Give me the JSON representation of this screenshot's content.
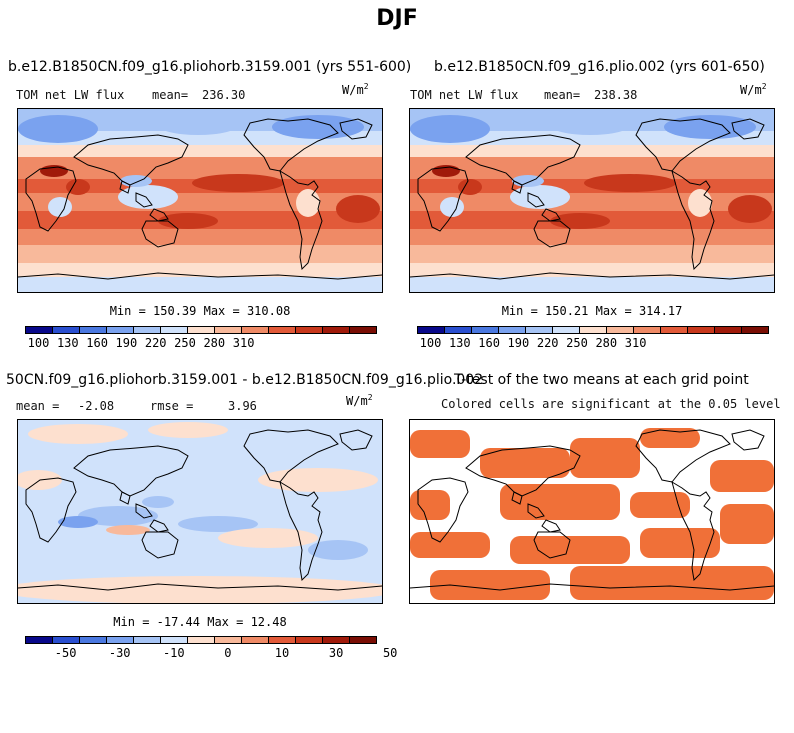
{
  "main_title": "DJF",
  "colors": {
    "scale_abs": [
      "#08088a",
      "#2a4fd0",
      "#4a78e0",
      "#7aa2ef",
      "#a6c4f5",
      "#d0e2fb",
      "#fde0cf",
      "#f8b99b",
      "#ef8a66",
      "#e25a39",
      "#c8381c",
      "#a01a0a",
      "#7a0e04"
    ],
    "scale_diff": [
      "#08088a",
      "#2a4fd0",
      "#4a78e0",
      "#7aa2ef",
      "#a6c4f5",
      "#d0e2fb",
      "#fde0cf",
      "#f8b99b",
      "#ef8a66",
      "#e25a39",
      "#c8381c",
      "#a01a0a",
      "#7a0e04"
    ],
    "significant": "#f07038",
    "coast": "#000000"
  },
  "panels": {
    "p1": {
      "title": "b.e12.B1850CN.f09_g16.pliohorb.3159.001 (yrs 551-600)",
      "variable": "TOM net LW flux",
      "mean_label": "mean=",
      "mean_value": "236.30",
      "units_base": "W/m",
      "units_exp": "2",
      "minmax": "Min = 150.39 Max = 310.08",
      "ticks": [
        "100",
        "130",
        "160",
        "190",
        "220",
        "250",
        "280",
        "310"
      ]
    },
    "p2": {
      "title": "b.e12.B1850CN.f09_g16.plio.002 (yrs 601-650)",
      "variable": "TOM net LW flux",
      "mean_label": "mean=",
      "mean_value": "238.38",
      "units_base": "W/m",
      "units_exp": "2",
      "minmax": "Min = 150.21 Max = 314.17",
      "ticks": [
        "100",
        "130",
        "160",
        "190",
        "220",
        "250",
        "280",
        "310"
      ]
    },
    "p3": {
      "title": "50CN.f09_g16.pliohorb.3159.001 - b.e12.B1850CN.f09_g16.plio.002",
      "mean_label": "mean =",
      "mean_value": "-2.08",
      "rmse_label": "rmse =",
      "rmse_value": "3.96",
      "units_base": "W/m",
      "units_exp": "2",
      "minmax": "Min = -17.44 Max =  12.48",
      "ticks": [
        "-50",
        "-30",
        "-10",
        "0",
        "10",
        "30",
        "50"
      ]
    },
    "p4": {
      "title": "T-test of the two means at each grid point",
      "subtitle": "Colored cells are significant at the 0.05 level"
    }
  },
  "chart_data": [
    {
      "type": "heatmap",
      "title": "b.e12.B1850CN.f09_g16.pliohorb.3159.001 (yrs 551-600)",
      "field": "TOM net LW flux",
      "units": "W/m2",
      "season": "DJF",
      "mean": 236.3,
      "min": 150.39,
      "max": 310.08,
      "colorbar_levels": [
        100,
        130,
        160,
        190,
        220,
        250,
        280,
        310
      ]
    },
    {
      "type": "heatmap",
      "title": "b.e12.B1850CN.f09_g16.plio.002 (yrs 601-650)",
      "field": "TOM net LW flux",
      "units": "W/m2",
      "season": "DJF",
      "mean": 238.38,
      "min": 150.21,
      "max": 314.17,
      "colorbar_levels": [
        100,
        130,
        160,
        190,
        220,
        250,
        280,
        310
      ]
    },
    {
      "type": "heatmap",
      "title": "50CN.f09_g16.pliohorb.3159.001 - b.e12.B1850CN.f09_g16.plio.002",
      "units": "W/m2",
      "mean": -2.08,
      "rmse": 3.96,
      "min": -17.44,
      "max": 12.48,
      "colorbar_levels": [
        -50,
        -30,
        -10,
        0,
        10,
        30,
        50
      ]
    },
    {
      "type": "heatmap",
      "title": "T-test of the two means at each grid point",
      "subtitle": "Colored cells are significant at the 0.05 level"
    }
  ]
}
